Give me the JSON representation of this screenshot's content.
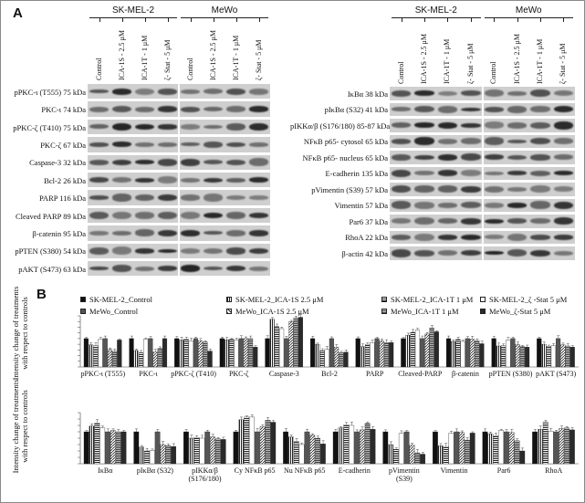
{
  "panel_a": {
    "letter": "A",
    "left_blot": {
      "groups": [
        "SK-MEL-2",
        "MeWo"
      ],
      "columns": [
        "Control",
        "ICA-1S - 2.5 μM",
        "ICA-1T - 1 μM",
        "ζ- Stat - 5 μM",
        "Control",
        "ICA-1S - 2.5 μM",
        "ICA-1T - 1 μM",
        "ζ- Stat - 5 μM"
      ],
      "rows": [
        "pPKC-ι (T555) 75 kDa",
        "PKC-ι 74 kDa",
        "pPKC-ζ (T410) 75 kDa",
        "PKC-ζ 67 kDa",
        "Caspase-3 32 kDa",
        "Bcl-2 26 kDa",
        "PARP 116 kDa",
        "Cleaved PARP 89 kDa",
        "β-catenin 95 kDa",
        "pPTEN (S380) 54 kDa",
        "pAKT (S473) 63 kDa"
      ]
    },
    "right_blot": {
      "groups": [
        "SK-MEL-2",
        "MeWo"
      ],
      "columns": [
        "Control",
        "ICA-1S - 2.5 μM",
        "ICA-1T - 1 μM",
        "ζ- Stat - 5 μM",
        "Control",
        "ICA-1S - 2.5 μM",
        "ICA-1T - 1 μM",
        "ζ- Stat - 5 μM"
      ],
      "rows": [
        "IκBα 38 kDa",
        "pIκBα (S32) 41 kDa",
        "pIKKα/β (S176/180) 85-87 kDa",
        "NFκB p65- cytosol 65 kDa",
        "NFκB p65- nucleus 65 kDa",
        "E-cadherin 135 kDa",
        "pVimentin (S39) 57 kDa",
        "Vimentin 57 kDa",
        "Par6 37 kDa",
        "RhoA 22 kDa",
        "β-actin 42 kDa"
      ]
    }
  },
  "panel_b": {
    "letter": "B",
    "ylabel": "Intensity change of treatments with respect to controls",
    "legend": [
      "SK-MEL-2_Control",
      "SK-MEL-2_ICA-1S 2.5 μM",
      "SK-MEL-2_ICA-1T 1 μM",
      "SK-MEL-2_ζ -Stat 5 μM",
      "MeWo_Control",
      "MeWo_ICA-1S 2.5 μM",
      "MeWo_ICA-1T 1 μM",
      "MeWo_ζ-Stat 5 μM"
    ],
    "colors": {
      "solid": "#111111",
      "mid": "#555555"
    }
  },
  "chart_data": [
    {
      "type": "bar",
      "ylim": [
        0,
        180
      ],
      "yticks": [
        0,
        20,
        40,
        60,
        80,
        100,
        120,
        140,
        160,
        180
      ],
      "categories": [
        "pPKC-ι (T555)",
        "PKC-ι",
        "pPKC-ζ (T410)",
        "PKC-ζ",
        "Caspase-3",
        "Bcl-2",
        "PARP",
        "Cleaved-PARP",
        "β-catenin",
        "pPTEN (S380)",
        "pAKT (S473)"
      ],
      "series": [
        {
          "name": "SK-MEL-2_Control",
          "values": [
            100,
            100,
            100,
            100,
            100,
            100,
            100,
            100,
            100,
            100,
            100
          ]
        },
        {
          "name": "SK-MEL-2_ICA-1S 2.5 μM",
          "values": [
            78,
            58,
            95,
            96,
            168,
            80,
            72,
            112,
            90,
            74,
            80
          ]
        },
        {
          "name": "SK-MEL-2_ICA-1T 1 μM",
          "values": [
            75,
            50,
            99,
            97,
            142,
            57,
            80,
            122,
            97,
            75,
            73
          ]
        },
        {
          "name": "SK-MEL-2_ζ -Stat 5 μM",
          "values": [
            98,
            98,
            92,
            95,
            135,
            62,
            86,
            130,
            90,
            95,
            75
          ]
        },
        {
          "name": "MeWo_Control",
          "values": [
            100,
            100,
            100,
            100,
            100,
            100,
            100,
            100,
            100,
            100,
            100
          ]
        },
        {
          "name": "MeWo_ICA-1S 2.5 μM",
          "values": [
            62,
            52,
            92,
            100,
            160,
            70,
            92,
            116,
            98,
            80,
            78
          ]
        },
        {
          "name": "MeWo_ICA-1T 1 μM",
          "values": [
            55,
            65,
            88,
            100,
            172,
            50,
            86,
            138,
            93,
            72,
            74
          ]
        },
        {
          "name": "MeWo_ζ-Stat 5 μM",
          "values": [
            95,
            100,
            56,
            70,
            175,
            52,
            86,
            124,
            82,
            70,
            70
          ]
        }
      ]
    },
    {
      "type": "bar",
      "ylim": [
        0,
        160
      ],
      "yticks": [
        0,
        20,
        40,
        60,
        80,
        100,
        120,
        140,
        160
      ],
      "categories": [
        "IκBα",
        "pIκBα (S32)",
        "pIKKα/β (S176/180)",
        "Cy NFκB p65",
        "Nu NFκB p65",
        "E-cadherin",
        "pVimentin (S39)",
        "Vimentin",
        "Par6",
        "RhoA"
      ],
      "series": [
        {
          "name": "SK-MEL-2_Control",
          "values": [
            100,
            100,
            100,
            100,
            100,
            100,
            100,
            100,
            100,
            100
          ]
        },
        {
          "name": "SK-MEL-2_ICA-1S 2.5 μM",
          "values": [
            118,
            52,
            80,
            138,
            84,
            112,
            60,
            56,
            94,
            108
          ]
        },
        {
          "name": "SK-MEL-2_ICA-1T 1 μM",
          "values": [
            128,
            40,
            82,
            146,
            70,
            122,
            45,
            54,
            88,
            130
          ]
        },
        {
          "name": "SK-MEL-2_ζ -Stat 5 μM",
          "values": [
            112,
            42,
            80,
            146,
            60,
            120,
            95,
            96,
            104,
            102
          ]
        },
        {
          "name": "MeWo_Control",
          "values": [
            100,
            100,
            100,
            100,
            100,
            100,
            100,
            100,
            100,
            100
          ]
        },
        {
          "name": "MeWo_ICA-1S 2.5 μM",
          "values": [
            104,
            60,
            84,
            116,
            90,
            106,
            58,
            98,
            98,
            110
          ]
        },
        {
          "name": "MeWo_ICA-1T 1 μM",
          "values": [
            100,
            56,
            78,
            136,
            80,
            126,
            34,
            74,
            72,
            112
          ]
        },
        {
          "name": "MeWo_ζ-Stat 5 μM",
          "values": [
            100,
            54,
            76,
            130,
            62,
            108,
            30,
            96,
            40,
            106
          ]
        }
      ]
    }
  ]
}
